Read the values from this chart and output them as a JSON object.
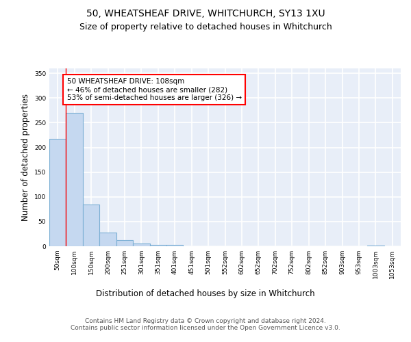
{
  "title1": "50, WHEATSHEAF DRIVE, WHITCHURCH, SY13 1XU",
  "title2": "Size of property relative to detached houses in Whitchurch",
  "xlabel": "Distribution of detached houses by size in Whitchurch",
  "ylabel": "Number of detached properties",
  "categories": [
    "50sqm",
    "100sqm",
    "150sqm",
    "200sqm",
    "251sqm",
    "301sqm",
    "351sqm",
    "401sqm",
    "451sqm",
    "501sqm",
    "552sqm",
    "602sqm",
    "652sqm",
    "702sqm",
    "752sqm",
    "802sqm",
    "852sqm",
    "903sqm",
    "953sqm",
    "1003sqm",
    "1053sqm"
  ],
  "values": [
    218,
    270,
    85,
    28,
    12,
    5,
    3,
    3,
    0,
    0,
    0,
    0,
    0,
    0,
    0,
    0,
    0,
    0,
    0,
    2,
    0
  ],
  "bar_color": "#c5d8f0",
  "bar_edge_color": "#7bafd4",
  "bar_edge_width": 0.8,
  "annotation_text": "50 WHEATSHEAF DRIVE: 108sqm\n← 46% of detached houses are smaller (282)\n53% of semi-detached houses are larger (326) →",
  "annotation_fontsize": 7.5,
  "annotation_box_color": "white",
  "annotation_border_color": "red",
  "ylim": [
    0,
    360
  ],
  "yticks": [
    0,
    50,
    100,
    150,
    200,
    250,
    300,
    350
  ],
  "bg_color": "#e8eef8",
  "grid_color": "white",
  "footer_text": "Contains HM Land Registry data © Crown copyright and database right 2024.\nContains public sector information licensed under the Open Government Licence v3.0.",
  "title1_fontsize": 10,
  "title2_fontsize": 9,
  "xlabel_fontsize": 8.5,
  "ylabel_fontsize": 8.5,
  "footer_fontsize": 6.5,
  "tick_fontsize": 6.5
}
